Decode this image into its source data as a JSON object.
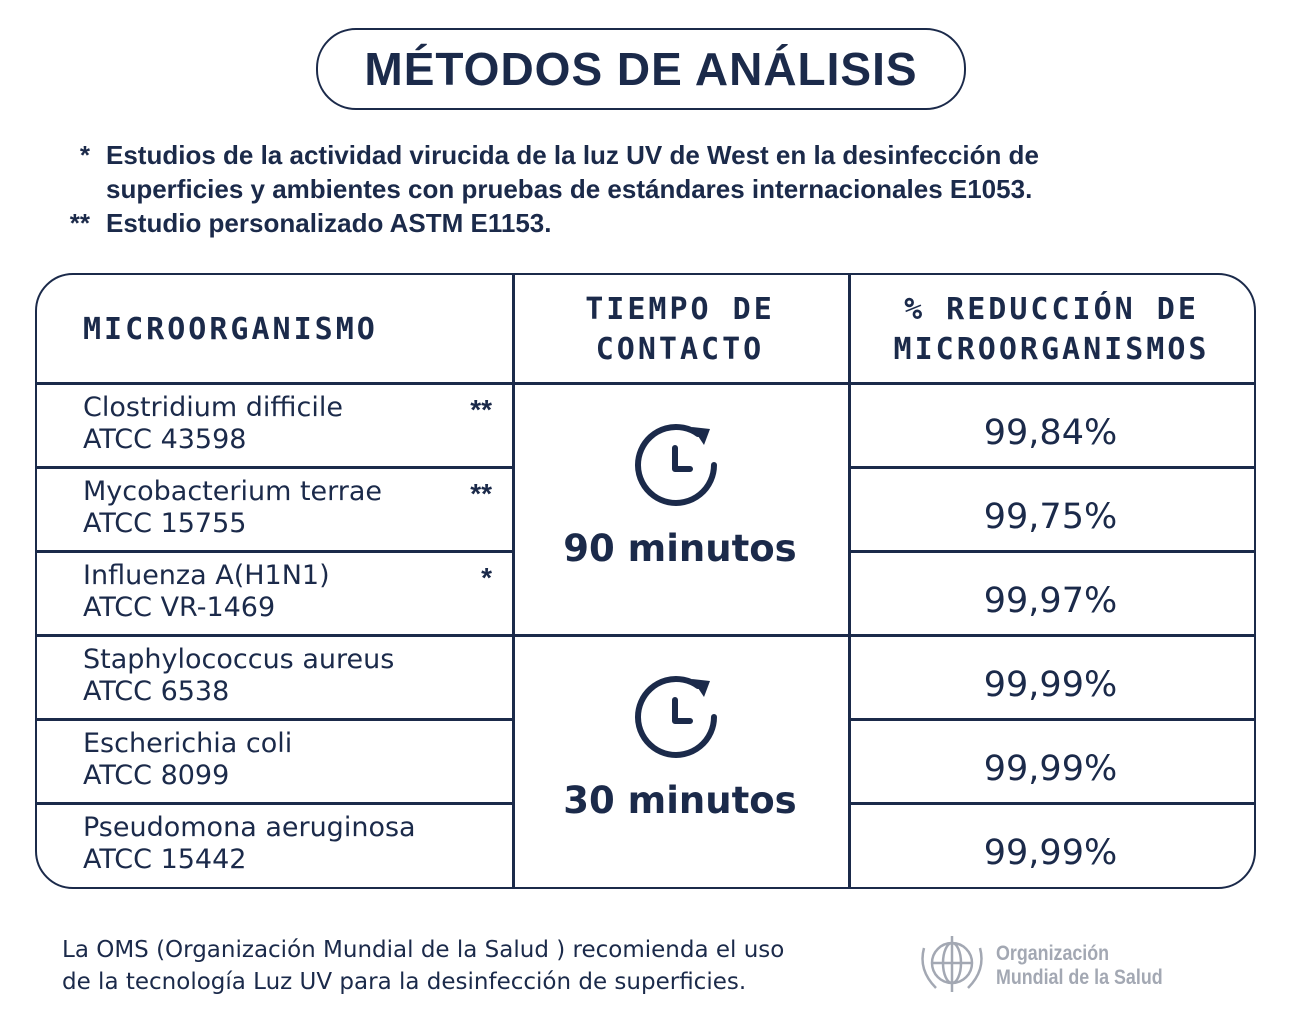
{
  "header": {
    "title": "MÉTODOS DE ANÁLISIS"
  },
  "notes": [
    {
      "marker": "*",
      "lines": [
        "Estudios de la actividad virucida de la luz UV de West en la desinfección de",
        "superficies y ambientes con pruebas de estándares internacionales E1053."
      ]
    },
    {
      "marker": "**",
      "lines": [
        "Estudio personalizado ASTM E1153."
      ]
    }
  ],
  "table": {
    "columns": [
      [
        "MICROORGANISMO"
      ],
      [
        "TIEMPO DE",
        "CONTACTO"
      ],
      [
        "% REDUCCIÓN DE",
        "MICROORGANISMOS"
      ]
    ],
    "rows": [
      {
        "name": "Clostridium difficile",
        "code": "ATCC 43598",
        "marker": "**",
        "reduction": "99,84%"
      },
      {
        "name": "Mycobacterium terrae",
        "code": "ATCC 15755",
        "marker": "**",
        "reduction": "99,75%"
      },
      {
        "name": "Influenza A(H1N1)",
        "code": "ATCC VR-1469",
        "marker": "*",
        "reduction": "99,97%"
      },
      {
        "name": "Staphylococcus aureus",
        "code": "ATCC 6538",
        "reduction": "99,99%"
      },
      {
        "name": "Escherichia coli",
        "code": "ATCC 8099",
        "reduction": "99,99%"
      },
      {
        "name": "Pseudomona aeruginosa",
        "code": "ATCC 15442",
        "reduction": "99,99%"
      }
    ],
    "groups": [
      {
        "time": "90 minutos",
        "rows": 3
      },
      {
        "time": "30 minutos",
        "rows": 3
      }
    ]
  },
  "footer": {
    "lines": [
      "La OMS (Organización Mundial de la Salud ) recomienda el uso",
      "de la tecnología Luz UV para la desinfección de superficies."
    ],
    "logo": [
      "Organización",
      "Mundial de la Salud"
    ]
  }
}
